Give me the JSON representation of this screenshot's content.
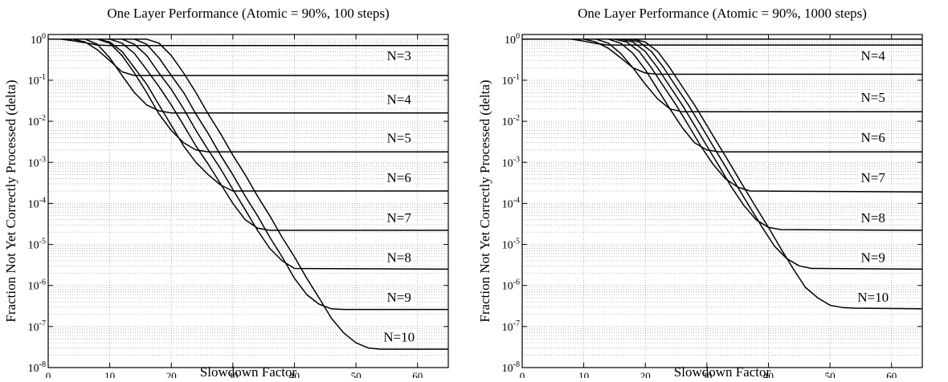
{
  "chart_data": [
    {
      "type": "line",
      "title": "One Layer Performance (Atomic = 90%, 100 steps)",
      "xlabel": "Slowdown Factor",
      "ylabel": "Fraction Not Yet Correctly Processed (delta)",
      "xlim": [
        0,
        65
      ],
      "ylim": [
        1e-08,
        1.3
      ],
      "yscale": "log",
      "grid": true,
      "x_ticks": [
        0,
        10,
        20,
        30,
        40,
        50,
        60
      ],
      "y_ticks": [
        1e-08,
        1e-07,
        1e-06,
        1e-05,
        0.0001,
        0.001,
        0.01,
        0.1,
        1
      ],
      "series": [
        {
          "name": "N=3",
          "points": [
            [
              0,
              1
            ],
            [
              2,
              1
            ],
            [
              4,
              0.92
            ],
            [
              6,
              0.82
            ],
            [
              8,
              0.72
            ],
            [
              10,
              0.7
            ],
            [
              65,
              0.7
            ]
          ]
        },
        {
          "name": "N=4",
          "points": [
            [
              0,
              1
            ],
            [
              4,
              1
            ],
            [
              6,
              0.85
            ],
            [
              8,
              0.55
            ],
            [
              10,
              0.3
            ],
            [
              12,
              0.16
            ],
            [
              14,
              0.13
            ],
            [
              65,
              0.13
            ]
          ]
        },
        {
          "name": "N=5",
          "points": [
            [
              0,
              1
            ],
            [
              6,
              1
            ],
            [
              8,
              0.75
            ],
            [
              10,
              0.35
            ],
            [
              12,
              0.13
            ],
            [
              14,
              0.05
            ],
            [
              16,
              0.025
            ],
            [
              18,
              0.018
            ],
            [
              20,
              0.016
            ],
            [
              65,
              0.016
            ]
          ]
        },
        {
          "name": "N=6",
          "points": [
            [
              0,
              1
            ],
            [
              8,
              1
            ],
            [
              10,
              0.8
            ],
            [
              12,
              0.4
            ],
            [
              14,
              0.15
            ],
            [
              16,
              0.05
            ],
            [
              18,
              0.015
            ],
            [
              20,
              0.006
            ],
            [
              22,
              0.003
            ],
            [
              24,
              0.002
            ],
            [
              26,
              0.0018
            ],
            [
              65,
              0.0018
            ]
          ]
        },
        {
          "name": "N=7",
          "points": [
            [
              0,
              1
            ],
            [
              8,
              1
            ],
            [
              10,
              0.85
            ],
            [
              12,
              0.5
            ],
            [
              14,
              0.2
            ],
            [
              16,
              0.08
            ],
            [
              18,
              0.025
            ],
            [
              20,
              0.008
            ],
            [
              22,
              0.0025
            ],
            [
              24,
              0.001
            ],
            [
              26,
              0.0005
            ],
            [
              28,
              0.00028
            ],
            [
              30,
              0.0002
            ],
            [
              65,
              0.0002
            ]
          ]
        },
        {
          "name": "N=8",
          "points": [
            [
              0,
              1
            ],
            [
              10,
              1
            ],
            [
              12,
              0.8
            ],
            [
              14,
              0.45
            ],
            [
              16,
              0.18
            ],
            [
              18,
              0.07
            ],
            [
              20,
              0.025
            ],
            [
              22,
              0.008
            ],
            [
              24,
              0.0025
            ],
            [
              26,
              0.0009
            ],
            [
              28,
              0.0003
            ],
            [
              30,
              0.0001
            ],
            [
              32,
              4e-05
            ],
            [
              34,
              2.5e-05
            ],
            [
              36,
              2.2e-05
            ],
            [
              65,
              2.2e-05
            ]
          ]
        },
        {
          "name": "N=9",
          "points": [
            [
              0,
              1
            ],
            [
              12,
              1
            ],
            [
              14,
              0.75
            ],
            [
              16,
              0.4
            ],
            [
              18,
              0.15
            ],
            [
              20,
              0.06
            ],
            [
              22,
              0.02
            ],
            [
              24,
              0.006
            ],
            [
              26,
              0.002
            ],
            [
              28,
              0.0007
            ],
            [
              30,
              0.00022
            ],
            [
              32,
              7e-05
            ],
            [
              34,
              2.2e-05
            ],
            [
              36,
              8e-06
            ],
            [
              38,
              4e-06
            ],
            [
              40,
              2.6e-06
            ],
            [
              65,
              2.5e-06
            ]
          ]
        },
        {
          "name": "N=10",
          "points": [
            [
              0,
              1
            ],
            [
              14,
              1
            ],
            [
              16,
              0.75
            ],
            [
              18,
              0.35
            ],
            [
              20,
              0.13
            ],
            [
              22,
              0.05
            ],
            [
              24,
              0.015
            ],
            [
              26,
              0.005
            ],
            [
              28,
              0.0015
            ],
            [
              30,
              0.0005
            ],
            [
              32,
              0.00015
            ],
            [
              34,
              5e-05
            ],
            [
              36,
              1.5e-05
            ],
            [
              38,
              5e-06
            ],
            [
              40,
              1.5e-06
            ],
            [
              42,
              6e-07
            ],
            [
              44,
              3.5e-07
            ],
            [
              46,
              2.7e-07
            ],
            [
              48,
              2.6e-07
            ],
            [
              65,
              2.6e-07
            ]
          ]
        },
        {
          "name": "",
          "points": [
            [
              0,
              1
            ],
            [
              16,
              1
            ],
            [
              18,
              0.8
            ],
            [
              20,
              0.4
            ],
            [
              22,
              0.15
            ],
            [
              24,
              0.05
            ],
            [
              26,
              0.015
            ],
            [
              28,
              0.005
            ],
            [
              30,
              0.0015
            ],
            [
              32,
              0.0005
            ],
            [
              34,
              0.00015
            ],
            [
              36,
              5e-05
            ],
            [
              38,
              1.5e-05
            ],
            [
              40,
              5e-06
            ],
            [
              42,
              1.5e-06
            ],
            [
              44,
              5e-07
            ],
            [
              46,
              1.6e-07
            ],
            [
              48,
              7e-08
            ],
            [
              50,
              4e-08
            ],
            [
              52,
              3e-08
            ],
            [
              54,
              2.8e-08
            ],
            [
              65,
              2.8e-08
            ]
          ]
        }
      ],
      "annotations": [
        {
          "text": "N=3",
          "x": 57,
          "y": 0.35
        },
        {
          "text": "N=4",
          "x": 57,
          "y": 0.03
        },
        {
          "text": "N=5",
          "x": 57,
          "y": 0.0035
        },
        {
          "text": "N=6",
          "x": 57,
          "y": 0.00038
        },
        {
          "text": "N=7",
          "x": 57,
          "y": 4e-05
        },
        {
          "text": "N=8",
          "x": 57,
          "y": 4.3e-06
        },
        {
          "text": "N=9",
          "x": 57,
          "y": 4.6e-07
        },
        {
          "text": "N=10",
          "x": 57,
          "y": 5e-08
        }
      ]
    },
    {
      "type": "line",
      "title": "One Layer Performance (Atomic = 90%, 1000 steps)",
      "xlabel": "Slowdown Factor",
      "ylabel": "Fraction Not Yet Correctly Processed (delta)",
      "xlim": [
        0,
        65
      ],
      "ylim": [
        1e-08,
        1.3
      ],
      "yscale": "log",
      "grid": true,
      "x_ticks": [
        0,
        10,
        20,
        30,
        40,
        50,
        60
      ],
      "y_ticks": [
        1e-08,
        1e-07,
        1e-06,
        1e-05,
        0.0001,
        0.001,
        0.01,
        0.1,
        1
      ],
      "series": [
        {
          "name": "",
          "points": [
            [
              0,
              1
            ],
            [
              65,
              1
            ]
          ]
        },
        {
          "name": "",
          "points": [
            [
              0,
              1
            ],
            [
              8,
              1
            ],
            [
              10,
              0.9
            ],
            [
              12,
              0.78
            ],
            [
              14,
              0.72
            ],
            [
              65,
              0.72
            ]
          ]
        },
        {
          "name": "N=4",
          "points": [
            [
              0,
              1
            ],
            [
              10,
              1
            ],
            [
              12,
              0.85
            ],
            [
              14,
              0.6
            ],
            [
              16,
              0.35
            ],
            [
              18,
              0.2
            ],
            [
              20,
              0.15
            ],
            [
              22,
              0.14
            ],
            [
              65,
              0.14
            ]
          ]
        },
        {
          "name": "N=5",
          "points": [
            [
              0,
              1
            ],
            [
              12,
              1
            ],
            [
              14,
              0.8
            ],
            [
              16,
              0.45
            ],
            [
              18,
              0.2
            ],
            [
              20,
              0.08
            ],
            [
              22,
              0.035
            ],
            [
              24,
              0.02
            ],
            [
              26,
              0.017
            ],
            [
              65,
              0.017
            ]
          ]
        },
        {
          "name": "N=6",
          "points": [
            [
              0,
              1
            ],
            [
              14,
              1
            ],
            [
              16,
              0.8
            ],
            [
              18,
              0.45
            ],
            [
              20,
              0.18
            ],
            [
              22,
              0.06
            ],
            [
              24,
              0.02
            ],
            [
              26,
              0.007
            ],
            [
              28,
              0.003
            ],
            [
              30,
              0.002
            ],
            [
              32,
              0.0018
            ],
            [
              65,
              0.0018
            ]
          ]
        },
        {
          "name": "N=7",
          "points": [
            [
              0,
              1
            ],
            [
              15,
              1
            ],
            [
              17,
              0.85
            ],
            [
              19,
              0.5
            ],
            [
              21,
              0.2
            ],
            [
              23,
              0.07
            ],
            [
              25,
              0.025
            ],
            [
              27,
              0.008
            ],
            [
              29,
              0.0025
            ],
            [
              31,
              0.0009
            ],
            [
              33,
              0.0004
            ],
            [
              35,
              0.00025
            ],
            [
              37,
              0.0002
            ],
            [
              65,
              0.00019
            ]
          ]
        },
        {
          "name": "N=8",
          "points": [
            [
              0,
              1
            ],
            [
              16,
              1
            ],
            [
              18,
              0.85
            ],
            [
              20,
              0.5
            ],
            [
              22,
              0.2
            ],
            [
              24,
              0.07
            ],
            [
              26,
              0.025
            ],
            [
              28,
              0.008
            ],
            [
              30,
              0.0025
            ],
            [
              32,
              0.0008
            ],
            [
              34,
              0.00025
            ],
            [
              36,
              9e-05
            ],
            [
              38,
              4e-05
            ],
            [
              40,
              2.6e-05
            ],
            [
              42,
              2.3e-05
            ],
            [
              65,
              2.2e-05
            ]
          ]
        },
        {
          "name": "N=9",
          "points": [
            [
              0,
              1
            ],
            [
              17,
              1
            ],
            [
              19,
              0.85
            ],
            [
              21,
              0.5
            ],
            [
              23,
              0.2
            ],
            [
              25,
              0.07
            ],
            [
              27,
              0.025
            ],
            [
              29,
              0.008
            ],
            [
              31,
              0.0025
            ],
            [
              33,
              0.0008
            ],
            [
              35,
              0.00025
            ],
            [
              37,
              8e-05
            ],
            [
              39,
              2.6e-05
            ],
            [
              41,
              9e-06
            ],
            [
              43,
              4.5e-06
            ],
            [
              45,
              3e-06
            ],
            [
              47,
              2.6e-06
            ],
            [
              65,
              2.5e-06
            ]
          ]
        },
        {
          "name": "N=10",
          "points": [
            [
              0,
              1
            ],
            [
              18,
              1
            ],
            [
              20,
              0.85
            ],
            [
              22,
              0.5
            ],
            [
              24,
              0.2
            ],
            [
              26,
              0.07
            ],
            [
              28,
              0.025
            ],
            [
              30,
              0.008
            ],
            [
              32,
              0.0025
            ],
            [
              34,
              0.0008
            ],
            [
              36,
              0.00025
            ],
            [
              38,
              8e-05
            ],
            [
              40,
              2.6e-05
            ],
            [
              42,
              8e-06
            ],
            [
              44,
              2.6e-06
            ],
            [
              46,
              9e-07
            ],
            [
              48,
              5e-07
            ],
            [
              50,
              3.3e-07
            ],
            [
              52,
              2.9e-07
            ],
            [
              54,
              2.8e-07
            ],
            [
              65,
              2.7e-07
            ]
          ]
        }
      ],
      "annotations": [
        {
          "text": "N=4",
          "x": 57,
          "y": 0.35
        },
        {
          "text": "N=5",
          "x": 57,
          "y": 0.034
        },
        {
          "text": "N=6",
          "x": 57,
          "y": 0.0036
        },
        {
          "text": "N=7",
          "x": 57,
          "y": 0.00038
        },
        {
          "text": "N=8",
          "x": 57,
          "y": 4e-05
        },
        {
          "text": "N=9",
          "x": 57,
          "y": 4.3e-06
        },
        {
          "text": "N=10",
          "x": 57,
          "y": 4.6e-07
        }
      ]
    }
  ]
}
